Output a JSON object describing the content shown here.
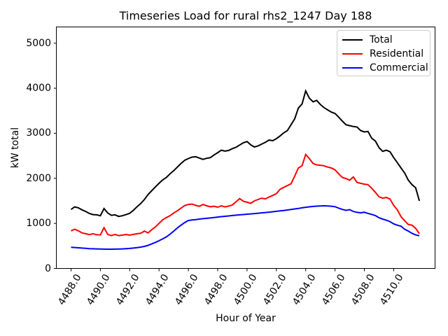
{
  "title": "Timeseries Load for rural rhs2_1247  Day 188",
  "axes": {
    "xlabel": "Hour of Year",
    "ylabel": "kW total",
    "x_tick_labels": [
      "4488.0",
      "4490.0",
      "4492.0",
      "4494.0",
      "4496.0",
      "4498.0",
      "4500.0",
      "4502.0",
      "4504.0",
      "4506.0",
      "4508.0",
      "4510.0"
    ],
    "x_tick_values": [
      4488,
      4490,
      4492,
      4494,
      4496,
      4498,
      4500,
      4502,
      4504,
      4506,
      4508,
      4510
    ],
    "y_tick_labels": [
      "0",
      "1000",
      "2000",
      "3000",
      "4000",
      "5000"
    ],
    "y_tick_values": [
      0,
      1000,
      2000,
      3000,
      4000,
      5000
    ]
  },
  "legend": {
    "position": "upper right",
    "entries": [
      "Total",
      "Residential",
      "Commercial"
    ]
  },
  "chart_data": {
    "type": "line",
    "title": "Timeseries Load for rural rhs2_1247  Day 188",
    "xlabel": "Hour of Year",
    "ylabel": "kW total",
    "xlim": [
      4487.0,
      4512.9
    ],
    "ylim": [
      0,
      5370
    ],
    "grid": false,
    "legend_position": "upper right",
    "x_start": 4488.0,
    "x_step": 0.25,
    "x_end": 4511.75,
    "series": [
      {
        "name": "Total",
        "color": "#000000",
        "values": [
          1310,
          1365,
          1345,
          1300,
          1265,
          1220,
          1195,
          1190,
          1170,
          1330,
          1230,
          1180,
          1190,
          1155,
          1170,
          1195,
          1225,
          1290,
          1370,
          1440,
          1530,
          1640,
          1725,
          1810,
          1890,
          1965,
          2020,
          2100,
          2170,
          2250,
          2330,
          2400,
          2440,
          2470,
          2480,
          2450,
          2420,
          2445,
          2460,
          2520,
          2570,
          2625,
          2605,
          2620,
          2660,
          2690,
          2740,
          2790,
          2815,
          2745,
          2695,
          2720,
          2760,
          2800,
          2850,
          2835,
          2880,
          2940,
          3010,
          3060,
          3190,
          3320,
          3560,
          3650,
          3940,
          3780,
          3700,
          3730,
          3640,
          3570,
          3520,
          3470,
          3440,
          3360,
          3270,
          3190,
          3170,
          3150,
          3140,
          3060,
          3030,
          3040,
          2890,
          2830,
          2680,
          2600,
          2625,
          2590,
          2460,
          2350,
          2230,
          2120,
          1960,
          1860,
          1790,
          1500
        ]
      },
      {
        "name": "Residential",
        "color": "#ff0000",
        "values": [
          835,
          870,
          835,
          790,
          770,
          750,
          770,
          748,
          745,
          905,
          755,
          728,
          755,
          728,
          740,
          753,
          740,
          755,
          770,
          780,
          830,
          790,
          860,
          920,
          1000,
          1080,
          1130,
          1170,
          1230,
          1280,
          1340,
          1395,
          1420,
          1430,
          1400,
          1380,
          1420,
          1390,
          1370,
          1380,
          1360,
          1390,
          1365,
          1385,
          1410,
          1480,
          1550,
          1490,
          1470,
          1445,
          1500,
          1530,
          1560,
          1545,
          1585,
          1620,
          1660,
          1755,
          1800,
          1840,
          1880,
          2050,
          2230,
          2280,
          2530,
          2440,
          2330,
          2300,
          2290,
          2280,
          2250,
          2230,
          2190,
          2100,
          2020,
          1995,
          1960,
          2030,
          1910,
          1890,
          1870,
          1860,
          1780,
          1690,
          1590,
          1560,
          1575,
          1540,
          1400,
          1300,
          1150,
          1060,
          975,
          960,
          890,
          770
        ]
      },
      {
        "name": "Commercial",
        "color": "#0000ff",
        "values": [
          470,
          465,
          458,
          452,
          446,
          440,
          436,
          433,
          430,
          429,
          428,
          428,
          429,
          431,
          434,
          438,
          444,
          452,
          462,
          474,
          490,
          512,
          545,
          578,
          615,
          655,
          700,
          760,
          830,
          900,
          960,
          1020,
          1065,
          1075,
          1085,
          1095,
          1105,
          1112,
          1120,
          1130,
          1140,
          1150,
          1158,
          1166,
          1174,
          1182,
          1190,
          1197,
          1204,
          1211,
          1218,
          1226,
          1234,
          1242,
          1250,
          1259,
          1268,
          1277,
          1287,
          1297,
          1308,
          1320,
          1332,
          1345,
          1358,
          1368,
          1377,
          1383,
          1387,
          1390,
          1388,
          1382,
          1370,
          1340,
          1310,
          1290,
          1305,
          1265,
          1245,
          1235,
          1248,
          1222,
          1200,
          1175,
          1125,
          1095,
          1070,
          1040,
          990,
          960,
          938,
          870,
          830,
          780,
          745,
          725
        ]
      }
    ]
  }
}
